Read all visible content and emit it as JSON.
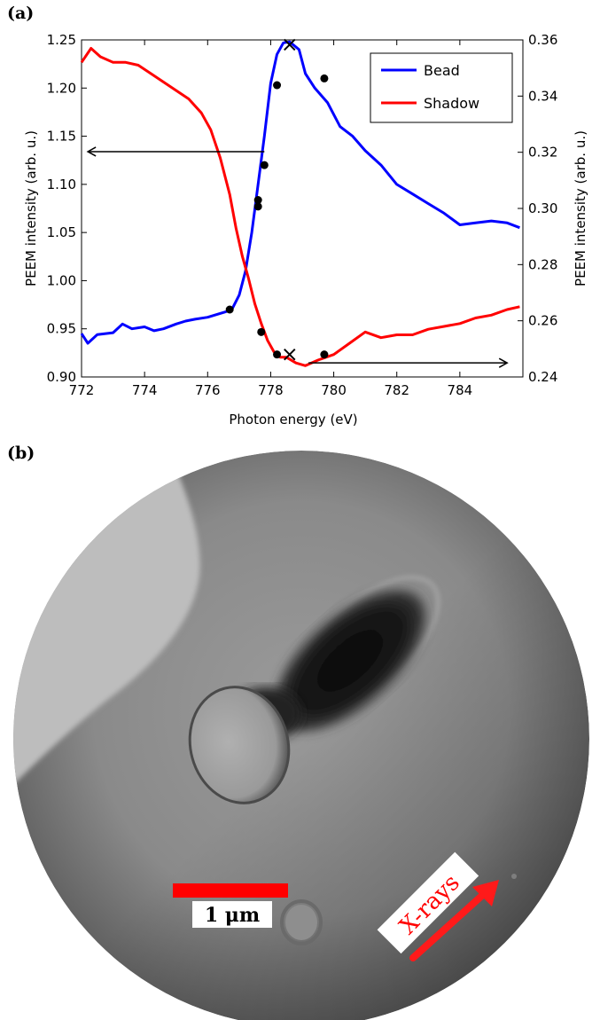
{
  "panel_a": {
    "label": "(a)"
  },
  "panel_b": {
    "label": "(b)"
  },
  "chart_data": {
    "type": "line",
    "xlabel": "Photon energy (eV)",
    "ylabel_left": "PEEM intensity (arb. u.)",
    "ylabel_right": "PEEM intensity (arb. u.)",
    "xlim": [
      772,
      786
    ],
    "ylim_left": [
      0.9,
      1.25
    ],
    "ylim_right": [
      0.24,
      0.36
    ],
    "x_ticks": [
      "772",
      "774",
      "776",
      "778",
      "780",
      "782",
      "784"
    ],
    "y_left_ticks": [
      "0.90",
      "0.95",
      "1.00",
      "1.05",
      "1.10",
      "1.15",
      "1.20",
      "1.25"
    ],
    "y_right_ticks": [
      "0.24",
      "0.26",
      "0.28",
      "0.30",
      "0.32",
      "0.34",
      "0.36"
    ],
    "legend_position": "top-right",
    "grid": false,
    "series": [
      {
        "name": "Bead",
        "color": "#0000ff",
        "axis": "left",
        "x": [
          772.0,
          772.2,
          772.5,
          773.0,
          773.3,
          773.6,
          774.0,
          774.3,
          774.6,
          775.0,
          775.3,
          775.6,
          776.0,
          776.3,
          776.6,
          776.8,
          777.0,
          777.2,
          777.4,
          777.6,
          777.8,
          778.0,
          778.2,
          778.4,
          778.6,
          778.9,
          779.1,
          779.4,
          779.8,
          780.2,
          780.6,
          781.0,
          781.5,
          782.0,
          782.5,
          783.0,
          783.5,
          784.0,
          784.5,
          785.0,
          785.5,
          785.9
        ],
        "y": [
          0.945,
          0.935,
          0.944,
          0.946,
          0.955,
          0.95,
          0.952,
          0.948,
          0.95,
          0.955,
          0.958,
          0.96,
          0.962,
          0.965,
          0.968,
          0.972,
          0.985,
          1.01,
          1.05,
          1.1,
          1.15,
          1.205,
          1.235,
          1.247,
          1.248,
          1.24,
          1.215,
          1.2,
          1.185,
          1.16,
          1.15,
          1.135,
          1.12,
          1.1,
          1.09,
          1.08,
          1.07,
          1.058,
          1.06,
          1.062,
          1.06,
          1.055
        ]
      },
      {
        "name": "Shadow",
        "color": "#ff0000",
        "axis": "right",
        "x": [
          772.0,
          772.3,
          772.6,
          773.0,
          773.4,
          773.8,
          774.2,
          774.6,
          775.0,
          775.4,
          775.8,
          776.1,
          776.4,
          776.7,
          776.9,
          777.1,
          777.3,
          777.5,
          777.7,
          777.9,
          778.1,
          778.3,
          778.5,
          778.8,
          779.1,
          779.5,
          780.0,
          780.5,
          781.0,
          781.5,
          782.0,
          782.5,
          783.0,
          783.5,
          784.0,
          784.5,
          785.0,
          785.5,
          785.9
        ],
        "y": [
          0.352,
          0.357,
          0.354,
          0.352,
          0.352,
          0.351,
          0.348,
          0.345,
          0.342,
          0.339,
          0.334,
          0.328,
          0.318,
          0.305,
          0.293,
          0.283,
          0.275,
          0.266,
          0.259,
          0.253,
          0.249,
          0.247,
          0.247,
          0.245,
          0.244,
          0.246,
          0.248,
          0.252,
          0.256,
          0.254,
          0.255,
          0.255,
          0.257,
          0.258,
          0.259,
          0.261,
          0.262,
          0.264,
          0.265
        ]
      }
    ],
    "bead_dots": [
      [
        777.6,
        1.077
      ],
      [
        777.8,
        1.12
      ],
      [
        778.2,
        1.203
      ],
      [
        779.7,
        1.21
      ]
    ],
    "shadow_dots": [
      [
        776.7,
        0.264
      ],
      [
        777.6,
        0.303
      ],
      [
        777.7,
        0.256
      ],
      [
        778.2,
        0.248
      ],
      [
        779.7,
        0.248
      ]
    ],
    "bead_cross": [
      778.6,
      1.245
    ],
    "shadow_cross": [
      778.6,
      0.248
    ],
    "arrows": [
      {
        "from": [
          777.8,
          1.134
        ],
        "to": [
          772.2,
          1.134
        ],
        "axis": "left"
      },
      {
        "from": [
          779.2,
          0.245
        ],
        "to": [
          785.5,
          0.245
        ],
        "axis": "right"
      }
    ]
  },
  "image": {
    "scale_label": "1 μm",
    "xray_label": "X-rays",
    "scale_bar_color": "#ff0000",
    "arrow_color": "#ff1a1a"
  }
}
